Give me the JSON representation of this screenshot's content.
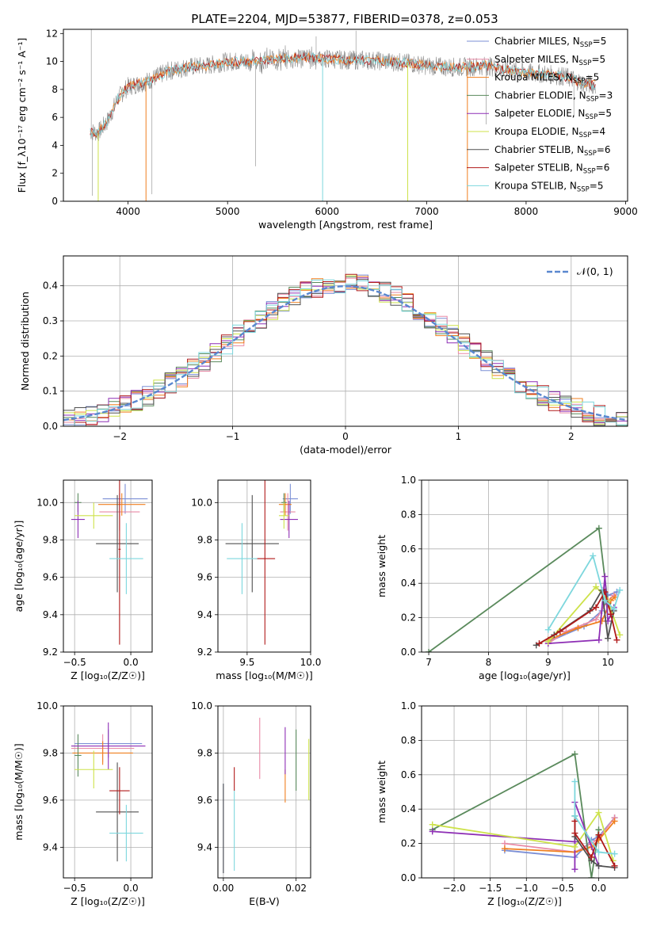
{
  "figure_title": "PLATE=2204, MJD=53877, FIBERID=0378, z=0.053",
  "colors": {
    "Chabrier MILES": "#7b8fd6",
    "Salpeter MILES": "#e88aa6",
    "Kroupa MILES": "#f07f1f",
    "Chabrier ELODIE": "#5a8a5c",
    "Salpeter ELODIE": "#8e2fb5",
    "Kroupa ELODIE": "#cde24a",
    "Chabrier STELIB": "#505050",
    "Salpeter STELIB": "#b01a1a",
    "Kroupa STELIB": "#7dd7dd",
    "data": "#8a8a8a",
    "normal": "#5a87cf"
  },
  "chart_data": [
    {
      "id": "spectrum",
      "type": "line",
      "title": "PLATE=2204, MJD=53877, FIBERID=0378, z=0.053",
      "xlabel": "wavelength [Angstrom, rest frame]",
      "ylabel": "Flux [f_λ10⁻¹⁷ erg cm⁻² s⁻¹ A⁻¹]",
      "xlim": [
        3350,
        9020
      ],
      "ylim": [
        0,
        12.3
      ],
      "xticks": [
        4000,
        5000,
        6000,
        7000,
        8000,
        9000
      ],
      "yticks": [
        0,
        2,
        4,
        6,
        8,
        10,
        12
      ],
      "legend_position": "top-right",
      "legend": [
        {
          "label": "Chabrier MILES, N",
          "sub": "SSP",
          "tail": "=5"
        },
        {
          "label": "Salpeter MILES, N",
          "sub": "SSP",
          "tail": "=5"
        },
        {
          "label": "Kroupa MILES, N",
          "sub": "SSP",
          "tail": "=5"
        },
        {
          "label": "Chabrier ELODIE, N",
          "sub": "SSP",
          "tail": "=3"
        },
        {
          "label": "Salpeter ELODIE, N",
          "sub": "SSP",
          "tail": "=5"
        },
        {
          "label": "Kroupa ELODIE, N",
          "sub": "SSP",
          "tail": "=4"
        },
        {
          "label": "Chabrier STELIB, N",
          "sub": "SSP",
          "tail": "=6"
        },
        {
          "label": "Salpeter STELIB, N",
          "sub": "SSP",
          "tail": "=6"
        },
        {
          "label": "Kroupa STELIB, N",
          "sub": "SSP",
          "tail": "=5"
        }
      ],
      "continuum": [
        [
          3620,
          5.0
        ],
        [
          3700,
          4.9
        ],
        [
          3800,
          5.8
        ],
        [
          3900,
          7.4
        ],
        [
          4000,
          8.2
        ],
        [
          4200,
          8.6
        ],
        [
          4400,
          9.3
        ],
        [
          4600,
          9.6
        ],
        [
          4800,
          9.7
        ],
        [
          5000,
          10.0
        ],
        [
          5200,
          10.0
        ],
        [
          5400,
          10.1
        ],
        [
          5600,
          10.2
        ],
        [
          5800,
          10.3
        ],
        [
          6000,
          10.2
        ],
        [
          6200,
          10.1
        ],
        [
          6400,
          10.1
        ],
        [
          6600,
          10.0
        ],
        [
          6800,
          9.9
        ],
        [
          7000,
          9.7
        ],
        [
          7200,
          9.6
        ],
        [
          7400,
          9.6
        ],
        [
          7600,
          9.7
        ],
        [
          7800,
          9.4
        ],
        [
          8000,
          9.2
        ],
        [
          8200,
          9.1
        ],
        [
          8400,
          8.9
        ],
        [
          8600,
          8.4
        ],
        [
          8700,
          8.3
        ]
      ]
    },
    {
      "id": "residuals",
      "type": "bar",
      "xlabel": "(data-model)/error",
      "ylabel": "Normed distribution",
      "xlim": [
        -2.5,
        2.5
      ],
      "ylim": [
        0,
        0.485
      ],
      "xticks": [
        -2,
        -1,
        0,
        1,
        2
      ],
      "yticks": [
        0.0,
        0.1,
        0.2,
        0.3,
        0.4
      ],
      "legend": "𝒩(0, 1)",
      "legend_position": "top-right",
      "bin_width": 0.1
    },
    {
      "id": "age-vs-Z",
      "type": "scatter",
      "xlabel": "Z [log₁₀(Z/Z☉)]",
      "ylabel": "age  [log₁₀(age/yr)]",
      "xlim": [
        -0.6,
        0.19
      ],
      "ylim": [
        9.2,
        10.12
      ],
      "xticks": [
        -0.5,
        0.0
      ],
      "yticks": [
        9.2,
        9.4,
        9.6,
        9.8,
        10.0
      ],
      "points": [
        {
          "model": "Chabrier MILES",
          "x": -0.05,
          "xerr": 0.2,
          "y": 10.02,
          "yerr": 0.08
        },
        {
          "model": "Salpeter MILES",
          "x": -0.1,
          "xerr": 0.18,
          "y": 9.95,
          "yerr": 0.1
        },
        {
          "model": "Kroupa MILES",
          "x": -0.08,
          "xerr": 0.21,
          "y": 9.99,
          "yerr": 0.06
        },
        {
          "model": "Chabrier ELODIE",
          "x": -0.47,
          "xerr": 0.03,
          "y": 10.0,
          "yerr": 0.05
        },
        {
          "model": "Salpeter ELODIE",
          "x": -0.47,
          "xerr": 0.06,
          "y": 9.91,
          "yerr": 0.1
        },
        {
          "model": "Kroupa ELODIE",
          "x": -0.33,
          "xerr": 0.17,
          "y": 9.93,
          "yerr": 0.07
        },
        {
          "model": "Chabrier STELIB",
          "x": -0.12,
          "xerr": 0.19,
          "y": 9.78,
          "yerr": 0.26
        },
        {
          "model": "Salpeter STELIB",
          "x": -0.1,
          "xerr": 0.01,
          "y": 9.75,
          "yerr": 0.51
        },
        {
          "model": "Kroupa STELIB",
          "x": -0.04,
          "xerr": 0.15,
          "y": 9.7,
          "yerr": 0.19
        }
      ]
    },
    {
      "id": "age-vs-mass",
      "type": "scatter",
      "xlabel": "mass [log₁₀(M/M☉)]",
      "ylabel": "",
      "xlim": [
        9.27,
        10.0
      ],
      "ylim": [
        9.2,
        10.12
      ],
      "xticks": [
        9.5,
        10.0
      ],
      "yticks": [
        9.2,
        9.4,
        9.6,
        9.8,
        10.0
      ],
      "points": [
        {
          "model": "Chabrier MILES",
          "x": 9.84,
          "xerr": 0.06,
          "y": 10.02,
          "yerr": 0.08
        },
        {
          "model": "Salpeter MILES",
          "x": 9.82,
          "xerr": 0.06,
          "y": 9.95,
          "yerr": 0.1
        },
        {
          "model": "Kroupa MILES",
          "x": 9.8,
          "xerr": 0.05,
          "y": 9.99,
          "yerr": 0.06
        },
        {
          "model": "Chabrier ELODIE",
          "x": 9.79,
          "xerr": 0.02,
          "y": 10.0,
          "yerr": 0.05
        },
        {
          "model": "Salpeter ELODIE",
          "x": 9.83,
          "xerr": 0.07,
          "y": 9.91,
          "yerr": 0.1
        },
        {
          "model": "Kroupa ELODIE",
          "x": 9.79,
          "xerr": 0.04,
          "y": 9.93,
          "yerr": 0.07
        },
        {
          "model": "Chabrier STELIB",
          "x": 9.54,
          "xerr": 0.21,
          "y": 9.78,
          "yerr": 0.26
        },
        {
          "model": "Salpeter STELIB",
          "x": 9.64,
          "xerr": 0.08,
          "y": 9.7,
          "yerr": 0.46
        },
        {
          "model": "Kroupa STELIB",
          "x": 9.46,
          "xerr": 0.12,
          "y": 9.7,
          "yerr": 0.19
        }
      ]
    },
    {
      "id": "weight-vs-age",
      "type": "line",
      "xlabel": "age  [log₁₀(age/yr)]",
      "ylabel": "mass weight",
      "xlim": [
        6.88,
        10.33
      ],
      "ylim": [
        0,
        1
      ],
      "xticks": [
        7,
        8,
        9,
        10
      ],
      "yticks": [
        0.0,
        0.2,
        0.4,
        0.6,
        0.8,
        1.0
      ],
      "series": [
        {
          "model": "Chabrier MILES",
          "x": [
            9.0,
            9.6,
            9.9,
            10.0,
            10.15
          ],
          "y": [
            0.06,
            0.15,
            0.24,
            0.33,
            0.35
          ]
        },
        {
          "model": "Salpeter MILES",
          "x": [
            9.0,
            9.3,
            9.8,
            10.0,
            10.1
          ],
          "y": [
            0.05,
            0.12,
            0.19,
            0.3,
            0.33
          ]
        },
        {
          "model": "Kroupa MILES",
          "x": [
            9.0,
            9.5,
            9.9,
            10.05,
            10.12
          ],
          "y": [
            0.07,
            0.14,
            0.18,
            0.3,
            0.32
          ]
        },
        {
          "model": "Chabrier ELODIE",
          "x": [
            7.0,
            9.85,
            10.0
          ],
          "y": [
            0.0,
            0.72,
            0.28
          ]
        },
        {
          "model": "Salpeter ELODIE",
          "x": [
            9.0,
            9.85,
            9.95,
            10.0,
            10.1
          ],
          "y": [
            0.05,
            0.07,
            0.44,
            0.18,
            0.26
          ]
        },
        {
          "model": "Kroupa ELODIE",
          "x": [
            9.0,
            9.8,
            10.0,
            10.2
          ],
          "y": [
            0.06,
            0.38,
            0.3,
            0.1
          ]
        },
        {
          "model": "Chabrier STELIB",
          "x": [
            8.8,
            9.1,
            9.7,
            9.9,
            10.0,
            10.1
          ],
          "y": [
            0.04,
            0.1,
            0.24,
            0.36,
            0.08,
            0.24
          ]
        },
        {
          "model": "Salpeter STELIB",
          "x": [
            8.85,
            9.2,
            9.8,
            9.95,
            10.05,
            10.15
          ],
          "y": [
            0.05,
            0.12,
            0.26,
            0.35,
            0.22,
            0.07
          ]
        },
        {
          "model": "Kroupa STELIB",
          "x": [
            9.0,
            9.75,
            9.95,
            10.1,
            10.2
          ],
          "y": [
            0.13,
            0.56,
            0.3,
            0.25,
            0.36
          ]
        }
      ]
    },
    {
      "id": "mass-vs-Z",
      "type": "scatter",
      "xlabel": "Z [log₁₀(Z/Z☉)]",
      "ylabel": "mass [log₁₀(M/M☉)]",
      "xlim": [
        -0.6,
        0.19
      ],
      "ylim": [
        9.27,
        10.0
      ],
      "xticks": [
        -0.5,
        0.0
      ],
      "yticks": [
        9.4,
        9.6,
        9.8,
        10.0
      ],
      "points": [
        {
          "model": "Chabrier MILES",
          "x": -0.2,
          "xerr": 0.3,
          "y": 9.84,
          "yerr": 0.06
        },
        {
          "model": "Salpeter MILES",
          "x": -0.25,
          "xerr": 0.28,
          "y": 9.82,
          "yerr": 0.06
        },
        {
          "model": "Kroupa MILES",
          "x": -0.25,
          "xerr": 0.27,
          "y": 9.8,
          "yerr": 0.05
        },
        {
          "model": "Chabrier ELODIE",
          "x": -0.47,
          "xerr": 0.03,
          "y": 9.79,
          "yerr": 0.09
        },
        {
          "model": "Salpeter ELODIE",
          "x": -0.2,
          "xerr": 0.33,
          "y": 9.83,
          "yerr": 0.1
        },
        {
          "model": "Kroupa ELODIE",
          "x": -0.33,
          "xerr": 0.17,
          "y": 9.73,
          "yerr": 0.08
        },
        {
          "model": "Chabrier STELIB",
          "x": -0.12,
          "xerr": 0.19,
          "y": 9.55,
          "yerr": 0.21
        },
        {
          "model": "Salpeter STELIB",
          "x": -0.1,
          "xerr": 0.09,
          "y": 9.64,
          "yerr": 0.1
        },
        {
          "model": "Kroupa STELIB",
          "x": -0.04,
          "xerr": 0.15,
          "y": 9.46,
          "yerr": 0.12
        }
      ]
    },
    {
      "id": "mass-vs-ebv",
      "type": "scatter",
      "xlabel": "E(B-V)",
      "ylabel": "",
      "xlim": [
        -0.0015,
        0.024
      ],
      "ylim": [
        9.27,
        10.0
      ],
      "xticks": [
        0.0,
        0.02
      ],
      "xtick_labels": [
        "0.00",
        "0.02"
      ],
      "yticks": [
        9.4,
        9.6,
        9.8,
        10.0
      ],
      "points": [
        {
          "model": "Chabrier MILES",
          "x": 0.0,
          "y": 9.48,
          "yerr": 0.19
        },
        {
          "model": "Salpeter MILES",
          "x": 0.01,
          "y": 9.82,
          "yerr": 0.13
        },
        {
          "model": "Kroupa MILES",
          "x": 0.017,
          "y": 9.66,
          "yerr": 0.07
        },
        {
          "model": "Chabrier ELODIE",
          "x": 0.02,
          "y": 9.77,
          "yerr": 0.13
        },
        {
          "model": "Salpeter ELODIE",
          "x": 0.017,
          "y": 9.81,
          "yerr": 0.1
        },
        {
          "model": "Kroupa ELODIE",
          "x": 0.0235,
          "y": 9.73,
          "yerr": 0.13
        },
        {
          "model": "Chabrier STELIB",
          "x": 0.0,
          "y": 9.48,
          "yerr": 0.19
        },
        {
          "model": "Salpeter STELIB",
          "x": 0.003,
          "y": 9.69,
          "yerr": 0.05
        },
        {
          "model": "Kroupa STELIB",
          "x": 0.003,
          "y": 9.47,
          "yerr": 0.17
        }
      ]
    },
    {
      "id": "weight-vs-Z",
      "type": "line",
      "xlabel": "Z [log₁₀(Z/Z☉)]",
      "ylabel": "mass weight",
      "xlim": [
        -2.45,
        0.4
      ],
      "ylim": [
        0,
        1
      ],
      "xticks": [
        -2.0,
        -1.5,
        -1.0,
        -0.5,
        0.0
      ],
      "xtick_labels": [
        "−2.0",
        "−1.5",
        "−1.0",
        "−0.5",
        "0.0"
      ],
      "yticks": [
        0.0,
        0.2,
        0.4,
        0.6,
        0.8,
        1.0
      ],
      "series": [
        {
          "model": "Chabrier MILES",
          "x": [
            -1.3,
            -0.33,
            -0.1,
            0.0,
            0.22
          ],
          "y": [
            0.16,
            0.12,
            0.22,
            0.24,
            0.35
          ]
        },
        {
          "model": "Salpeter MILES",
          "x": [
            -1.3,
            -0.33,
            -0.1,
            0.0,
            0.22
          ],
          "y": [
            0.2,
            0.15,
            0.2,
            0.23,
            0.35
          ]
        },
        {
          "model": "Kroupa MILES",
          "x": [
            -1.3,
            -0.33,
            -0.1,
            0.0,
            0.22
          ],
          "y": [
            0.17,
            0.15,
            0.18,
            0.22,
            0.33
          ]
        },
        {
          "model": "Chabrier ELODIE",
          "x": [
            -2.3,
            -0.33,
            -0.1,
            0.0
          ],
          "y": [
            0.28,
            0.72,
            0.0,
            0.28
          ]
        },
        {
          "model": "Salpeter ELODIE",
          "x": [
            -2.3,
            -0.33,
            -0.33,
            -0.33,
            0.0
          ],
          "y": [
            0.27,
            0.21,
            0.05,
            0.44,
            0.07
          ]
        },
        {
          "model": "Kroupa ELODIE",
          "x": [
            -2.3,
            -0.33,
            0.0,
            0.2
          ],
          "y": [
            0.31,
            0.18,
            0.38,
            0.1
          ]
        },
        {
          "model": "Chabrier STELIB",
          "x": [
            -0.33,
            -0.33,
            -0.1,
            0.0,
            0.22
          ],
          "y": [
            0.36,
            0.24,
            0.1,
            0.07,
            0.06
          ]
        },
        {
          "model": "Salpeter STELIB",
          "x": [
            -0.33,
            -0.33,
            -0.1,
            0.0,
            0.22
          ],
          "y": [
            0.33,
            0.26,
            0.12,
            0.25,
            0.07
          ]
        },
        {
          "model": "Kroupa STELIB",
          "x": [
            -0.33,
            -0.33,
            0.0,
            0.22
          ],
          "y": [
            0.56,
            0.36,
            0.15,
            0.14
          ]
        }
      ]
    }
  ]
}
